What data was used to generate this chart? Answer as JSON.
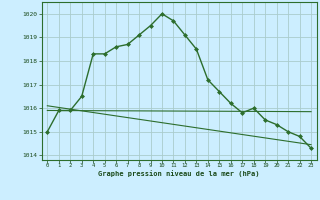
{
  "title": "Graphe pression niveau de la mer (hPa)",
  "bg_color": "#cceeff",
  "grid_color": "#aacccc",
  "line_color": "#2d6e2d",
  "xlim": [
    -0.5,
    23.5
  ],
  "ylim": [
    1013.8,
    1020.5
  ],
  "yticks": [
    1014,
    1015,
    1016,
    1017,
    1018,
    1019,
    1020
  ],
  "xticks": [
    0,
    1,
    2,
    3,
    4,
    5,
    6,
    7,
    8,
    9,
    10,
    11,
    12,
    13,
    14,
    15,
    16,
    17,
    18,
    19,
    20,
    21,
    22,
    23
  ],
  "main_line": [
    1015.0,
    1015.9,
    1015.9,
    1016.5,
    1018.3,
    1018.3,
    1018.6,
    1018.7,
    1019.1,
    1019.5,
    1020.0,
    1019.7,
    1019.1,
    1018.5,
    1017.2,
    1016.7,
    1016.2,
    1015.8,
    1016.0,
    1015.5,
    1015.3,
    1015.0,
    1014.8,
    1014.3
  ],
  "trend_line1_x": [
    0,
    23
  ],
  "trend_line1_y": [
    1015.9,
    1015.85
  ],
  "trend_line2_x": [
    0,
    23
  ],
  "trend_line2_y": [
    1016.1,
    1014.45
  ]
}
